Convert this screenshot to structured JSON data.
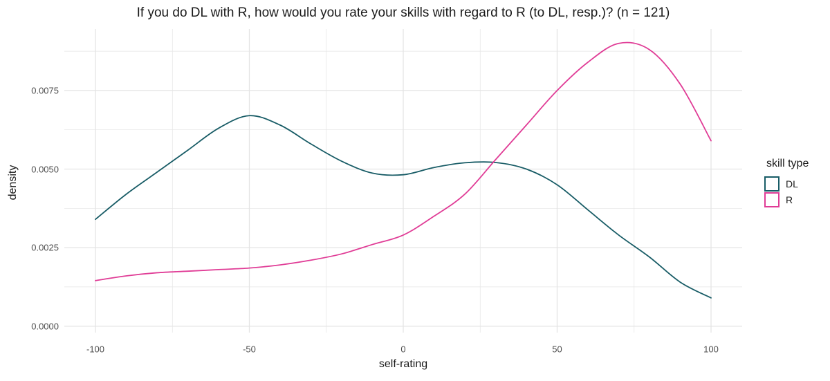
{
  "figure": {
    "title": "If you do DL with R, how would you rate your skills with regard to R (to DL, resp.)? (n = 121)"
  },
  "legend": {
    "title": "skill type",
    "entries": [
      {
        "label": "DL",
        "color": "#185C66"
      },
      {
        "label": "R",
        "color": "#E03C96"
      }
    ]
  },
  "colors": {
    "dl_line": "#185C66",
    "r_line": "#E03C96",
    "grid": "#E4E4E4",
    "tick_label_text": "#4D4D4D",
    "axis_title_text": "#1A1A1A",
    "background": "#FFFFFF"
  },
  "chart_data": {
    "type": "line",
    "subtype": "density",
    "title": "If you do DL with R, how would you rate your skills with regard to R (to DL, resp.)? (n = 121)",
    "n": 121,
    "xlabel": "self-rating",
    "ylabel": "density",
    "legend_title": "skill type",
    "legend_position": "right",
    "grid": true,
    "xlim": [
      -110,
      110
    ],
    "ylim": [
      0,
      0.0095
    ],
    "x_ticks": [
      -100,
      -50,
      0,
      50,
      100
    ],
    "x_tick_labels": [
      "-100",
      "-50",
      "0",
      "50",
      "100"
    ],
    "x_minor_ticks": [
      -75,
      -25,
      25,
      75
    ],
    "y_ticks": [
      0,
      0.0025,
      0.005,
      0.0075
    ],
    "y_tick_labels": [
      "0.0000",
      "0.0025",
      "0.0050",
      "0.0075"
    ],
    "y_minor_ticks": [
      0.00125,
      0.00375,
      0.00625,
      0.00875
    ],
    "x": [
      -100,
      -90,
      -80,
      -70,
      -60,
      -50,
      -40,
      -30,
      -20,
      -10,
      0,
      10,
      20,
      30,
      40,
      50,
      60,
      70,
      80,
      90,
      100
    ],
    "series": [
      {
        "name": "DL",
        "color": "#185C66",
        "values": [
          0.0034,
          0.0042,
          0.0049,
          0.0056,
          0.0063,
          0.0067,
          0.0064,
          0.0058,
          0.00525,
          0.00487,
          0.00482,
          0.00505,
          0.0052,
          0.00521,
          0.005,
          0.0045,
          0.0037,
          0.0029,
          0.0022,
          0.0014,
          0.0009
        ]
      },
      {
        "name": "R",
        "color": "#E03C96",
        "values": [
          0.00145,
          0.0016,
          0.0017,
          0.00175,
          0.0018,
          0.00185,
          0.00195,
          0.0021,
          0.0023,
          0.0026,
          0.0029,
          0.0035,
          0.0042,
          0.0053,
          0.0064,
          0.0075,
          0.0084,
          0.009,
          0.0088,
          0.0077,
          0.0059
        ]
      }
    ]
  }
}
